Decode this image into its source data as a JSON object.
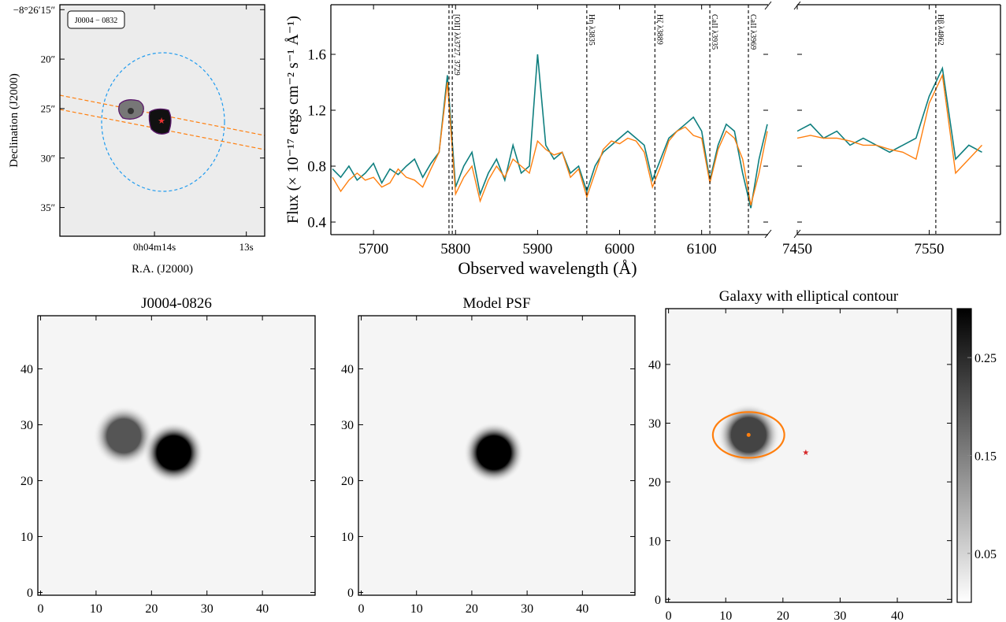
{
  "chart_data": [
    {
      "type": "image",
      "label": "J0004 − 0832",
      "xlabel": "R.A. (J2000)",
      "ylabel": "Declination (J2000)",
      "xlim": [
        15.03,
        12.8
      ],
      "ylim": [
        37.9,
        14.5
      ],
      "xticks": [
        {
          "value": 14,
          "label": "0h04m14s"
        },
        {
          "value": 13,
          "label": "13s"
        }
      ],
      "yticks": [
        {
          "value": 15,
          "label": "−8°26′15″"
        },
        {
          "value": 20,
          "label": "20″"
        },
        {
          "value": 25,
          "label": "25″"
        },
        {
          "value": 30,
          "label": "30″"
        },
        {
          "value": 35,
          "label": "35″"
        }
      ]
    },
    {
      "type": "line",
      "xlabel": "Observed wavelength (Å)",
      "ylabel": "Flux (× 10⁻¹⁷ ergs cm⁻² s⁻¹ Å⁻¹)",
      "x": [
        5650,
        5660,
        5670,
        5680,
        5690,
        5700,
        5710,
        5720,
        5730,
        5740,
        5750,
        5760,
        5770,
        5780,
        5790,
        5800,
        5810,
        5820,
        5830,
        5840,
        5850,
        5860,
        5870,
        5880,
        5890,
        5900,
        5910,
        5920,
        5930,
        5940,
        5950,
        5960,
        5970,
        5980,
        5990,
        6000,
        6010,
        6020,
        6030,
        6040,
        6050,
        6060,
        6070,
        6080,
        6090,
        6100,
        6110,
        6120,
        6130,
        6140,
        6150,
        6160,
        6170,
        6180
      ],
      "xlim": [
        5648,
        6181
      ],
      "ylim": [
        0.31,
        1.955
      ],
      "xticks": [
        5700,
        5800,
        5900,
        6000,
        6100
      ],
      "yticks": [
        0.4,
        0.8,
        1.2,
        1.6
      ],
      "series": [
        {
          "color": "#0f7f7f",
          "values": [
            0.78,
            0.72,
            0.8,
            0.7,
            0.75,
            0.82,
            0.68,
            0.78,
            0.74,
            0.8,
            0.85,
            0.72,
            0.82,
            0.9,
            1.45,
            0.65,
            0.8,
            0.9,
            0.6,
            0.75,
            0.85,
            0.7,
            0.95,
            0.75,
            0.8,
            1.6,
            0.95,
            0.85,
            0.9,
            0.75,
            0.8,
            0.62,
            0.8,
            0.9,
            0.95,
            1.0,
            1.05,
            1.0,
            0.95,
            0.7,
            0.85,
            1.0,
            1.05,
            1.1,
            1.15,
            1.05,
            0.7,
            0.95,
            1.1,
            1.05,
            0.75,
            0.5,
            0.85,
            1.1
          ]
        },
        {
          "color": "#ff7f0e",
          "values": [
            0.72,
            0.62,
            0.7,
            0.75,
            0.7,
            0.72,
            0.65,
            0.68,
            0.78,
            0.72,
            0.7,
            0.65,
            0.78,
            0.9,
            1.4,
            0.6,
            0.72,
            0.8,
            0.55,
            0.7,
            0.8,
            0.72,
            0.85,
            0.8,
            0.75,
            0.98,
            0.92,
            0.88,
            0.9,
            0.72,
            0.78,
            0.58,
            0.75,
            0.92,
            0.98,
            0.96,
            1.0,
            0.98,
            0.9,
            0.65,
            0.8,
            0.98,
            1.05,
            1.08,
            1.02,
            1.0,
            0.68,
            0.92,
            1.05,
            1.0,
            0.85,
            0.52,
            0.75,
            1.05
          ]
        }
      ],
      "lines": [
        {
          "x": 5792,
          "label": null
        },
        {
          "x": 5796,
          "label": "[OII] λλ3727, 3729"
        },
        {
          "x": 5960,
          "label": "Hη λ3835"
        },
        {
          "x": 6043,
          "label": "Hζ λ3889"
        },
        {
          "x": 6110,
          "label": "CaII λ3935"
        },
        {
          "x": 6157,
          "label": "CaII λ3969"
        }
      ]
    },
    {
      "type": "line",
      "x": [
        7450,
        7460,
        7470,
        7480,
        7490,
        7500,
        7510,
        7520,
        7530,
        7540,
        7550,
        7560,
        7570,
        7580,
        7590
      ],
      "xlim": [
        7450,
        7604
      ],
      "ylim": [
        0.31,
        1.955
      ],
      "xticks": [
        7450,
        7550
      ],
      "yticks": [
        0.4,
        0.8,
        1.2,
        1.6
      ],
      "ytick_labels": false,
      "series": [
        {
          "color": "#0f7f7f",
          "values": [
            1.05,
            1.1,
            1.0,
            1.05,
            0.95,
            1.0,
            0.95,
            0.9,
            0.95,
            1.0,
            1.3,
            1.5,
            0.85,
            0.95,
            0.9
          ]
        },
        {
          "color": "#ff7f0e",
          "values": [
            1.0,
            1.02,
            1.0,
            1.0,
            0.98,
            0.95,
            0.95,
            0.92,
            0.9,
            0.85,
            1.25,
            1.45,
            0.75,
            0.85,
            0.95
          ]
        }
      ],
      "lines": [
        {
          "x": 7555,
          "label": "Hβ λ4862"
        }
      ]
    },
    {
      "type": "image",
      "title": "J0004-0826",
      "xlim": [
        -0.5,
        49.5
      ],
      "ylim": [
        -0.5,
        49.5
      ],
      "xticks": [
        0,
        10,
        20,
        30,
        40
      ],
      "yticks": [
        0,
        10,
        20,
        30,
        40
      ],
      "clim": [
        0,
        0.3
      ],
      "sources": [
        {
          "x": 15,
          "y": 28,
          "peak": 0.2
        },
        {
          "x": 24,
          "y": 25,
          "peak": 0.3
        }
      ]
    },
    {
      "type": "image",
      "title": "Model PSF",
      "xlim": [
        -0.5,
        49.5
      ],
      "ylim": [
        -0.5,
        49.5
      ],
      "xticks": [
        0,
        10,
        20,
        30,
        40
      ],
      "yticks": [
        0,
        10,
        20,
        30,
        40
      ],
      "clim": [
        0,
        0.3
      ],
      "sources": [
        {
          "x": 24,
          "y": 25,
          "peak": 0.3
        }
      ]
    },
    {
      "type": "image",
      "title": "Galaxy with elliptical contour",
      "xlim": [
        -0.5,
        49.5
      ],
      "ylim": [
        -0.5,
        49.5
      ],
      "xticks": [
        0,
        10,
        20,
        30,
        40
      ],
      "yticks": [
        0,
        10,
        20,
        30,
        40
      ],
      "clim": [
        0,
        0.3
      ],
      "cticks": [
        0.05,
        0.15,
        0.25
      ],
      "sources": [
        {
          "x": 14,
          "y": 28,
          "peak": 0.22
        }
      ],
      "ellipse": {
        "x": 14,
        "y": 28,
        "width": 12.5,
        "height": 8,
        "color": "#ff7f0e"
      },
      "star": {
        "x": 24,
        "y": 25,
        "color": "#d62728"
      }
    }
  ]
}
